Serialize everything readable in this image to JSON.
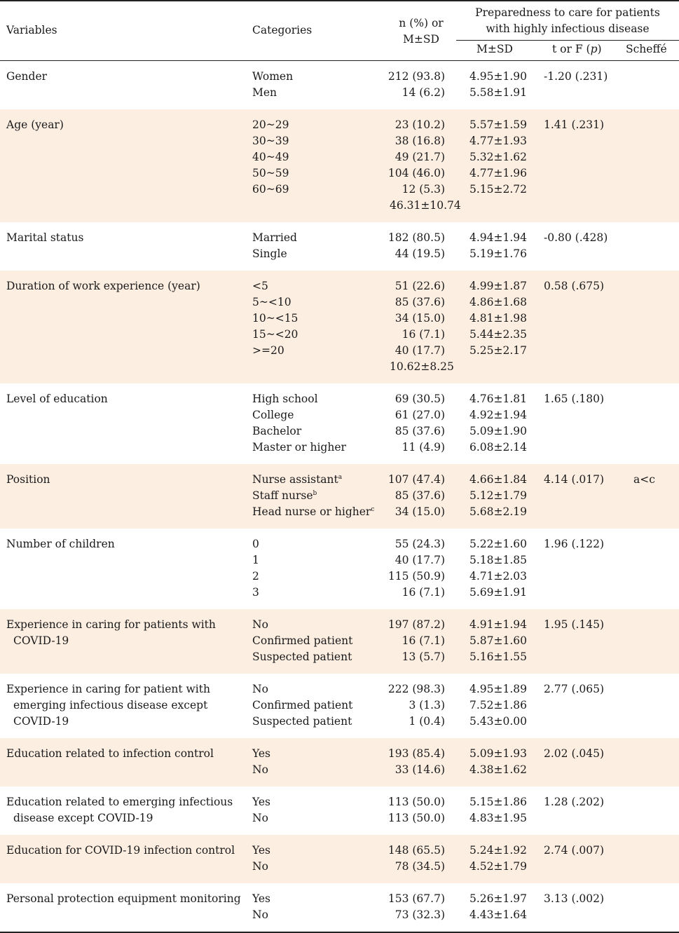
{
  "header": {
    "variables": "Variables",
    "categories": "Categories",
    "n_line1": "n (%) or",
    "n_line2": "M±SD",
    "prep_line1": "Preparedness to care for patients",
    "prep_line2": "with highly infectious disease",
    "msd": "M±SD",
    "tf_prefix": "t or F (",
    "tf_p": "p",
    "tf_suffix": ")",
    "scheffe": "Scheffé"
  },
  "groups": [
    {
      "var_lines": [
        "Gender"
      ],
      "shade": false,
      "rows": [
        {
          "cat": "Women",
          "n": "212 (93.8)",
          "msd": "4.95±1.90",
          "tf": "-1.20 (.231)"
        },
        {
          "cat": "Men",
          "n": "14 (6.2)",
          "msd": "5.58±1.91"
        }
      ]
    },
    {
      "var_lines": [
        "Age (year)"
      ],
      "shade": true,
      "rows": [
        {
          "cat": "20~29",
          "n": "23 (10.2)",
          "msd": "5.57±1.59",
          "tf": "1.41 (.231)"
        },
        {
          "cat": "30~39",
          "n": "38 (16.8)",
          "msd": "4.77±1.93"
        },
        {
          "cat": "40~49",
          "n": "49 (21.7)",
          "msd": "5.32±1.62"
        },
        {
          "cat": "50~59",
          "n": "104 (46.0)",
          "msd": "4.77±1.96"
        },
        {
          "cat": "60~69",
          "n": "12 (5.3)",
          "msd": "5.15±2.72"
        }
      ],
      "mean": "46.31±10.74"
    },
    {
      "var_lines": [
        "Marital status"
      ],
      "shade": false,
      "rows": [
        {
          "cat": "Married",
          "n": "182 (80.5)",
          "msd": "4.94±1.94",
          "tf": "-0.80 (.428)"
        },
        {
          "cat": "Single",
          "n": "44 (19.5)",
          "msd": "5.19±1.76"
        }
      ]
    },
    {
      "var_lines": [
        "Duration of work experience (year)"
      ],
      "shade": true,
      "rows": [
        {
          "cat": "<5",
          "n": "51 (22.6)",
          "msd": "4.99±1.87",
          "tf": "0.58 (.675)"
        },
        {
          "cat": "5~<10",
          "n": "85 (37.6)",
          "msd": "4.86±1.68"
        },
        {
          "cat": "10~<15",
          "n": "34 (15.0)",
          "msd": "4.81±1.98"
        },
        {
          "cat": "15~<20",
          "n": "16 (7.1)",
          "msd": "5.44±2.35"
        },
        {
          "cat": ">=20",
          "n": "40 (17.7)",
          "msd": "5.25±2.17"
        }
      ],
      "mean": "10.62±8.25"
    },
    {
      "var_lines": [
        "Level of education"
      ],
      "shade": false,
      "rows": [
        {
          "cat": "High school",
          "n": "69 (30.5)",
          "msd": "4.76±1.81",
          "tf": "1.65 (.180)"
        },
        {
          "cat": "College",
          "n": "61 (27.0)",
          "msd": "4.92±1.94"
        },
        {
          "cat": "Bachelor",
          "n": "85 (37.6)",
          "msd": "5.09±1.90"
        },
        {
          "cat": "Master or higher",
          "n": "11 (4.9)",
          "msd": "6.08±2.14"
        }
      ]
    },
    {
      "var_lines": [
        "Position"
      ],
      "shade": true,
      "rows": [
        {
          "cat": "Nurse assistant",
          "sup": "a",
          "n": "107 (47.4)",
          "msd": "4.66±1.84",
          "tf": "4.14 (.017)",
          "sch": "a<c"
        },
        {
          "cat": "Staff nurse",
          "sup": "b",
          "n": "85 (37.6)",
          "msd": "5.12±1.79"
        },
        {
          "cat": "Head nurse or higher",
          "sup": "c",
          "n": "34 (15.0)",
          "msd": "5.68±2.19"
        }
      ]
    },
    {
      "var_lines": [
        "Number of children"
      ],
      "shade": false,
      "rows": [
        {
          "cat": "0",
          "n": "55 (24.3)",
          "msd": "5.22±1.60",
          "tf": "1.96 (.122)"
        },
        {
          "cat": "1",
          "n": "40 (17.7)",
          "msd": "5.18±1.85"
        },
        {
          "cat": "2",
          "n": "115 (50.9)",
          "msd": "4.71±2.03"
        },
        {
          "cat": "3",
          "n": "16 (7.1)",
          "msd": "5.69±1.91"
        }
      ]
    },
    {
      "var_lines": [
        "Experience in caring for patients with",
        "COVID-19"
      ],
      "shade": true,
      "rows": [
        {
          "cat": "No",
          "n": "197 (87.2)",
          "msd": "4.91±1.94",
          "tf": "1.95 (.145)"
        },
        {
          "cat": "Confirmed patient",
          "n": "16 (7.1)",
          "msd": "5.87±1.60"
        },
        {
          "cat": "Suspected patient",
          "n": "13 (5.7)",
          "msd": "5.16±1.55"
        }
      ]
    },
    {
      "var_lines": [
        "Experience in caring for patient with",
        "emerging infectious disease except",
        "COVID-19"
      ],
      "shade": false,
      "rows": [
        {
          "cat": "No",
          "n": "222 (98.3)",
          "msd": "4.95±1.89",
          "tf": "2.77 (.065)"
        },
        {
          "cat": "Confirmed patient",
          "n": "3 (1.3)",
          "msd": "7.52±1.86"
        },
        {
          "cat": "Suspected patient",
          "n": "1 (0.4)",
          "msd": "5.43±0.00"
        }
      ]
    },
    {
      "var_lines": [
        "Education related to infection control"
      ],
      "shade": true,
      "rows": [
        {
          "cat": "Yes",
          "n": "193 (85.4)",
          "msd": "5.09±1.93",
          "tf": "2.02 (.045)"
        },
        {
          "cat": "No",
          "n": "33 (14.6)",
          "msd": "4.38±1.62"
        }
      ]
    },
    {
      "var_lines": [
        "Education related to emerging infectious",
        "disease except COVID-19"
      ],
      "shade": false,
      "rows": [
        {
          "cat": "Yes",
          "n": "113 (50.0)",
          "msd": "5.15±1.86",
          "tf": "1.28 (.202)"
        },
        {
          "cat": "No",
          "n": "113 (50.0)",
          "msd": "4.83±1.95"
        }
      ]
    },
    {
      "var_lines": [
        "Education for COVID-19 infection control"
      ],
      "shade": true,
      "rows": [
        {
          "cat": "Yes",
          "n": "148 (65.5)",
          "msd": "5.24±1.92",
          "tf": "2.74 (.007)"
        },
        {
          "cat": "No",
          "n": "78 (34.5)",
          "msd": "4.52±1.79"
        }
      ]
    },
    {
      "var_lines": [
        "Personal protection equipment monitoring"
      ],
      "shade": false,
      "rows": [
        {
          "cat": "Yes",
          "n": "153 (67.7)",
          "msd": "5.26±1.97",
          "tf": "3.13 (.002)"
        },
        {
          "cat": "No",
          "n": "73 (32.3)",
          "msd": "4.43±1.64"
        }
      ]
    }
  ]
}
